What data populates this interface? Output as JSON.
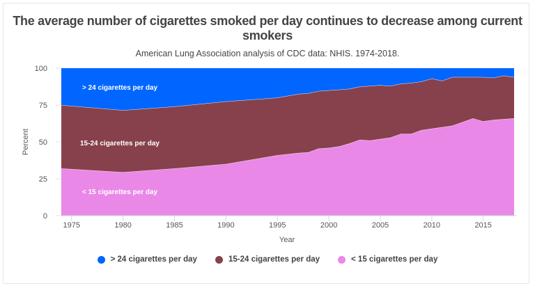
{
  "chart_data": {
    "type": "area",
    "stacked": true,
    "title": "The average number of cigarettes smoked per day continues to decrease among current smokers",
    "subtitle": "American Lung Association analysis of CDC data: NHIS. 1974-2018.",
    "xlabel": "Year",
    "ylabel": "Percent",
    "ylim": [
      0,
      100
    ],
    "xlim": [
      1974,
      2018
    ],
    "yticks": [
      "0",
      "25",
      "50",
      "75",
      "100"
    ],
    "xticks": [
      "1975",
      "1980",
      "1985",
      "1990",
      "1995",
      "2000",
      "2005",
      "2010",
      "2015"
    ],
    "grid": true,
    "legend": "bottom",
    "x": [
      1974,
      1980,
      1985,
      1990,
      1995,
      1997,
      1998,
      1999,
      2000,
      2001,
      2002,
      2003,
      2004,
      2005,
      2006,
      2007,
      2008,
      2009,
      2010,
      2011,
      2012,
      2013,
      2014,
      2015,
      2016,
      2017,
      2018
    ],
    "series": [
      {
        "name": "< 15 cigarettes per day",
        "color": "#ea88e8",
        "values": [
          32,
          29.5,
          32,
          35,
          41,
          42.5,
          43,
          45.5,
          46,
          47,
          49,
          51.5,
          51,
          52,
          53,
          55.5,
          55.5,
          58,
          59,
          60,
          61,
          63.5,
          66,
          64,
          65,
          65.5,
          66
        ]
      },
      {
        "name": "15-24 cigarettes per day",
        "color": "#87414c",
        "values": [
          43,
          42,
          42,
          42.5,
          39,
          40,
          40,
          39,
          39,
          38.5,
          37,
          36,
          37,
          36.5,
          35,
          34,
          34.5,
          33,
          34,
          31.5,
          33,
          30.5,
          28,
          30,
          28.5,
          29.5,
          28
        ]
      },
      {
        "name": "> 24 cigarettes per day",
        "color": "#0066ff",
        "values": [
          25,
          28.5,
          26,
          22.5,
          20,
          17.5,
          17,
          15.5,
          15,
          14.5,
          14,
          12.5,
          12,
          11.5,
          12,
          10.5,
          10,
          9,
          7,
          8.5,
          6,
          6,
          6,
          6,
          6.5,
          5,
          6
        ]
      }
    ]
  }
}
